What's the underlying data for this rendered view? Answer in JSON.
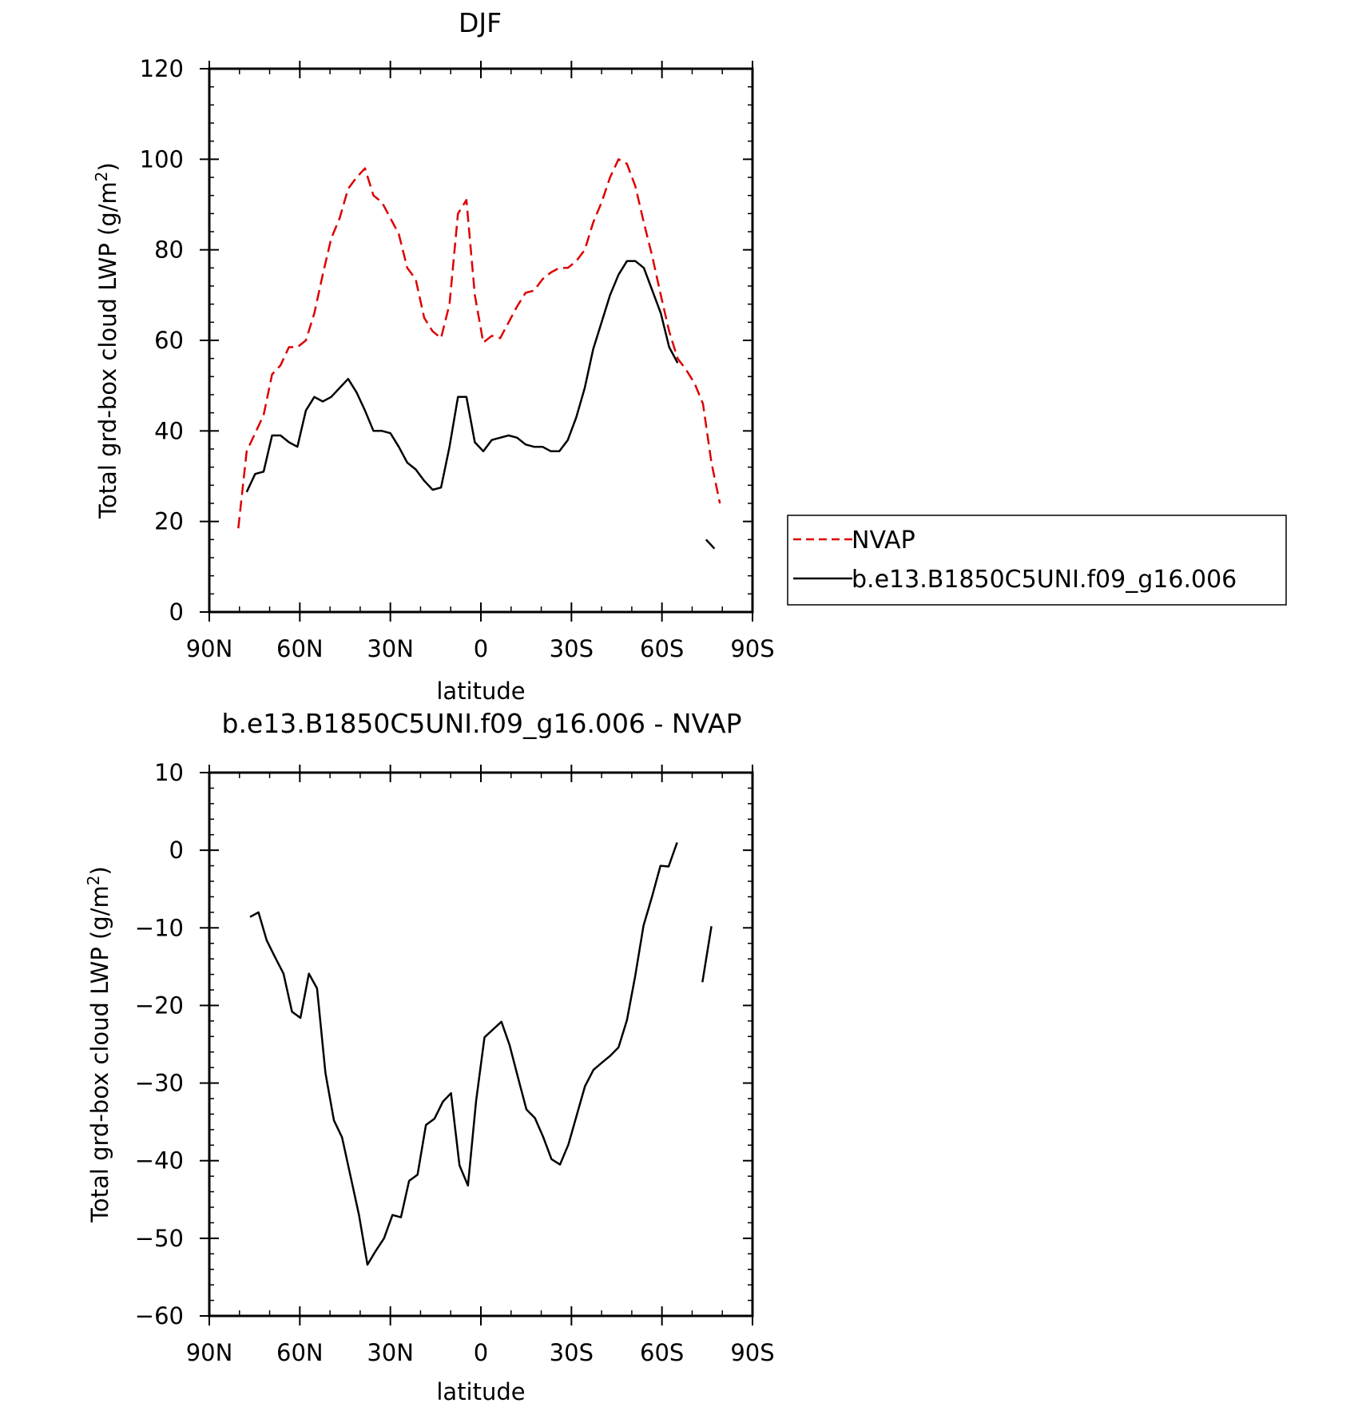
{
  "chart_data": [
    {
      "type": "line",
      "title": "DJF",
      "xlabel": "latitude",
      "ylabel": "Total grd-box cloud LWP (g/m",
      "ylabel_sup": "2",
      "ylabel_close": ")",
      "xlim": [
        -90,
        90
      ],
      "ylim": [
        0,
        120
      ],
      "x_ticks": [
        -90,
        -60,
        -30,
        0,
        30,
        60,
        90
      ],
      "x_tick_labels": [
        "90N",
        "60N",
        "30N",
        "0",
        "30S",
        "60S",
        "90S"
      ],
      "y_ticks": [
        0,
        20,
        40,
        60,
        80,
        100,
        120
      ],
      "y_tick_labels": [
        "0",
        "20",
        "40",
        "60",
        "80",
        "100",
        "120"
      ],
      "grid": false,
      "legend": "right-middle",
      "series": [
        {
          "name": "NVAP",
          "color": "#dd0000",
          "dash": "dashed",
          "segments": [
            [
              [
                -80.4,
                18.5
              ],
              [
                -77.6,
                35.5
              ],
              [
                -74.8,
                39.5
              ],
              [
                -72,
                43.5
              ],
              [
                -69.2,
                52.5
              ],
              [
                -66.4,
                54.5
              ],
              [
                -63.6,
                58.5
              ],
              [
                -60.8,
                58.5
              ],
              [
                -58,
                60
              ],
              [
                -55.2,
                66
              ],
              [
                -52.4,
                74.5
              ],
              [
                -49.6,
                82.5
              ],
              [
                -46.8,
                87
              ],
              [
                -44,
                93.5
              ],
              [
                -41.2,
                96
              ],
              [
                -38.4,
                98
              ],
              [
                -35.6,
                92
              ],
              [
                -32.8,
                90.5
              ],
              [
                -30,
                87
              ],
              [
                -27.2,
                83.5
              ],
              [
                -24.4,
                76
              ],
              [
                -21.6,
                73.5
              ],
              [
                -18.8,
                65
              ],
              [
                -16,
                62
              ],
              [
                -13.2,
                60.5
              ],
              [
                -10.4,
                68
              ],
              [
                -7.6,
                88
              ],
              [
                -4.8,
                91
              ],
              [
                -2,
                70
              ],
              [
                0.8,
                59.5
              ],
              [
                3.6,
                61
              ],
              [
                6.4,
                60.5
              ],
              [
                9.2,
                64
              ],
              [
                12,
                67.5
              ],
              [
                14.8,
                70.5
              ],
              [
                17.6,
                71
              ],
              [
                20.4,
                73.5
              ],
              [
                23.2,
                75
              ],
              [
                26,
                76
              ],
              [
                28.8,
                76
              ],
              [
                31.6,
                77.5
              ],
              [
                34.4,
                80
              ],
              [
                37.2,
                86
              ],
              [
                40,
                90.5
              ],
              [
                42.8,
                96
              ],
              [
                45.6,
                100
              ],
              [
                48.4,
                99
              ],
              [
                51.2,
                94
              ],
              [
                54,
                86
              ],
              [
                56.8,
                78.5
              ],
              [
                59.6,
                70
              ],
              [
                62.4,
                62
              ],
              [
                65.2,
                56
              ],
              [
                68,
                53.5
              ],
              [
                70.8,
                50.5
              ],
              [
                73.6,
                46
              ],
              [
                76.4,
                33
              ],
              [
                79.2,
                24
              ]
            ]
          ]
        },
        {
          "name": "b.e13.B1850C5UNI.f09_g16.006",
          "color": "#000000",
          "dash": "solid",
          "segments": [
            [
              [
                -77.6,
                26.5
              ],
              [
                -74.8,
                30.5
              ],
              [
                -72,
                31
              ],
              [
                -69.2,
                39
              ],
              [
                -66.4,
                39
              ],
              [
                -63.6,
                37.5
              ],
              [
                -60.8,
                36.5
              ],
              [
                -58,
                44.5
              ],
              [
                -55.2,
                47.5
              ],
              [
                -52.4,
                46.5
              ],
              [
                -49.6,
                47.5
              ],
              [
                -46.8,
                49.5
              ],
              [
                -44,
                51.5
              ],
              [
                -41.2,
                48.5
              ],
              [
                -38.4,
                44.5
              ],
              [
                -35.6,
                40
              ],
              [
                -32.8,
                40
              ],
              [
                -30,
                39.5
              ],
              [
                -27.2,
                36.5
              ],
              [
                -24.4,
                33
              ],
              [
                -21.6,
                31.5
              ],
              [
                -18.8,
                29
              ],
              [
                -16,
                27
              ],
              [
                -13.2,
                27.5
              ],
              [
                -10.4,
                36.5
              ],
              [
                -7.6,
                47.5
              ],
              [
                -4.8,
                47.5
              ],
              [
                -2,
                37.5
              ],
              [
                0.8,
                35.5
              ],
              [
                3.6,
                38
              ],
              [
                6.4,
                38.5
              ],
              [
                9.2,
                39
              ],
              [
                12,
                38.5
              ],
              [
                14.8,
                37
              ],
              [
                17.6,
                36.5
              ],
              [
                20.4,
                36.5
              ],
              [
                23.2,
                35.5
              ],
              [
                26,
                35.5
              ],
              [
                28.8,
                38
              ],
              [
                31.6,
                43
              ],
              [
                34.4,
                49.5
              ],
              [
                37.2,
                58
              ],
              [
                40,
                64
              ],
              [
                42.8,
                70
              ],
              [
                45.6,
                74.5
              ],
              [
                48.4,
                77.5
              ],
              [
                51.2,
                77.5
              ],
              [
                54,
                76
              ],
              [
                56.8,
                71
              ],
              [
                59.6,
                66
              ],
              [
                62.4,
                58.5
              ],
              [
                65.2,
                55
              ]
            ],
            [
              [
                74.6,
                16
              ],
              [
                77.4,
                14
              ]
            ]
          ]
        }
      ]
    },
    {
      "type": "line",
      "title": "b.e13.B1850C5UNI.f09_g16.006 - NVAP",
      "xlabel": "latitude",
      "ylabel": "Total grd-box cloud LWP (g/m",
      "ylabel_sup": "2",
      "ylabel_close": ")",
      "xlim": [
        -90,
        90
      ],
      "ylim": [
        -60,
        10
      ],
      "x_ticks": [
        -90,
        -60,
        -30,
        0,
        30,
        60,
        90
      ],
      "x_tick_labels": [
        "90N",
        "60N",
        "30N",
        "0",
        "30S",
        "60S",
        "90S"
      ],
      "y_ticks": [
        -60,
        -50,
        -40,
        -30,
        -20,
        -10,
        0,
        10
      ],
      "y_tick_labels": [
        "-60",
        "-50",
        "-40",
        "-30",
        "-20",
        "-10",
        "0",
        "10"
      ],
      "grid": false,
      "series": [
        {
          "name": "",
          "color": "#000000",
          "dash": "solid",
          "segments": [
            [
              [
                -76.5,
                -8.6
              ],
              [
                -73.7,
                -8.0
              ],
              [
                -71,
                -11.6
              ],
              [
                -68.2,
                -13.8
              ],
              [
                -65.4,
                -15.9
              ],
              [
                -62.6,
                -20.8
              ],
              [
                -59.8,
                -21.6
              ],
              [
                -57,
                -15.9
              ],
              [
                -54.3,
                -17.8
              ],
              [
                -51.5,
                -28.7
              ],
              [
                -48.7,
                -34.8
              ],
              [
                -46,
                -37.0
              ],
              [
                -43.2,
                -42.0
              ],
              [
                -40.4,
                -47.0
              ],
              [
                -37.6,
                -53.4
              ],
              [
                -34.8,
                -51.6
              ],
              [
                -32.1,
                -50.0
              ],
              [
                -29.3,
                -47.0
              ],
              [
                -26.5,
                -47.3
              ],
              [
                -23.8,
                -42.6
              ],
              [
                -21,
                -41.8
              ],
              [
                -18.2,
                -35.4
              ],
              [
                -15.4,
                -34.6
              ],
              [
                -12.6,
                -32.4
              ],
              [
                -9.9,
                -31.3
              ],
              [
                -7.1,
                -40.6
              ],
              [
                -4.3,
                -43.2
              ],
              [
                -1.6,
                -32.3
              ],
              [
                1.2,
                -24.1
              ],
              [
                4,
                -23.1
              ],
              [
                6.8,
                -22.1
              ],
              [
                9.5,
                -25.1
              ],
              [
                12.3,
                -29.3
              ],
              [
                15.1,
                -33.4
              ],
              [
                17.9,
                -34.5
              ],
              [
                20.6,
                -36.9
              ],
              [
                23.4,
                -39.8
              ],
              [
                26.2,
                -40.5
              ],
              [
                29,
                -37.9
              ],
              [
                31.7,
                -34.2
              ],
              [
                34.5,
                -30.4
              ],
              [
                37.3,
                -28.3
              ],
              [
                40,
                -27.4
              ],
              [
                42.8,
                -26.5
              ],
              [
                45.6,
                -25.4
              ],
              [
                48.4,
                -21.9
              ],
              [
                51.1,
                -16.3
              ],
              [
                53.9,
                -9.7
              ],
              [
                56.7,
                -6.0
              ],
              [
                59.5,
                -2.0
              ],
              [
                62.2,
                -2.1
              ],
              [
                65,
                1.0
              ]
            ],
            [
              [
                73.4,
                -17.0
              ],
              [
                76.4,
                -9.8
              ]
            ]
          ]
        }
      ]
    }
  ]
}
